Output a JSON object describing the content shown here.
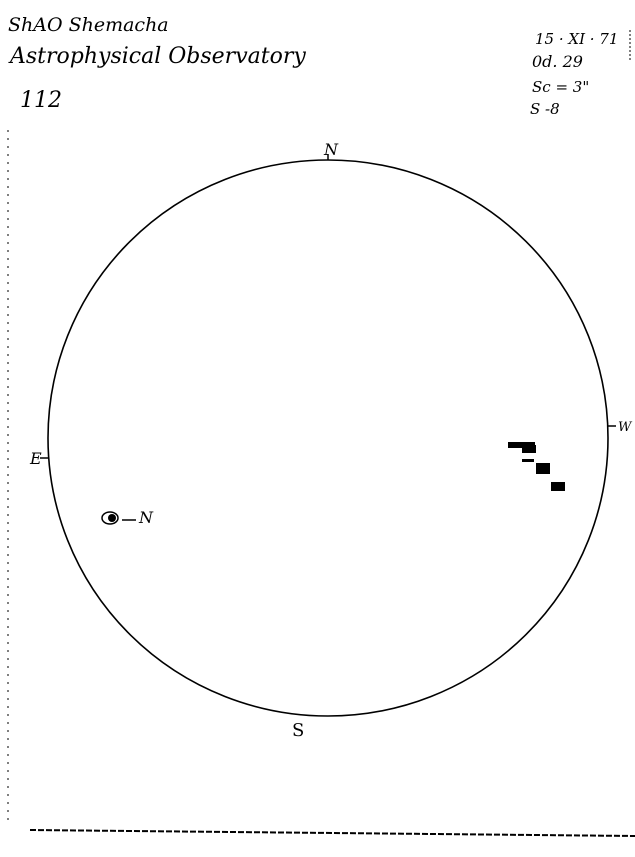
{
  "header": {
    "line1": "ShAO Shemacha",
    "line2": "Astrophysical Observatory",
    "number": "112"
  },
  "observation": {
    "date": "15 · XI · 71",
    "time": "0d. 29",
    "seeing": "Sc = 3\"",
    "s_value": "S -8"
  },
  "disk": {
    "north": "N",
    "south": "S",
    "east": "E",
    "west": "W",
    "spot_label": "N"
  }
}
